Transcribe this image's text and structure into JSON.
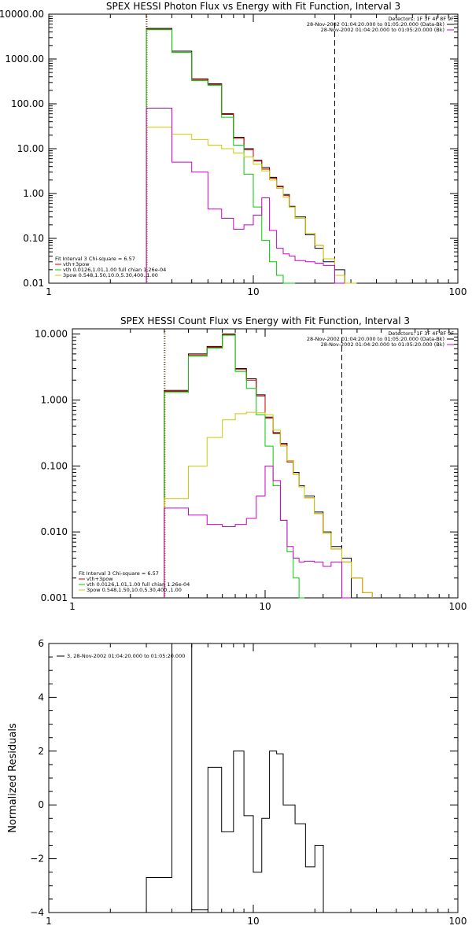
{
  "chart_data": [
    {
      "type": "line",
      "title": "SPEX HESSI Photon Flux vs Energy with Fit Function, Interval 3",
      "xscale": "log",
      "yscale": "log",
      "xlim": [
        1,
        100
      ],
      "ylim": [
        0.01,
        10000
      ],
      "xticks": [
        {
          "v": 1,
          "label": "1"
        },
        {
          "v": 10,
          "label": "10"
        },
        {
          "v": 100,
          "label": "100"
        }
      ],
      "yticks": [
        {
          "v": 0.01,
          "label": "0.01"
        },
        {
          "v": 0.1,
          "label": "0.10"
        },
        {
          "v": 1,
          "label": "1.00"
        },
        {
          "v": 10,
          "label": "10.00"
        },
        {
          "v": 100,
          "label": "100.00"
        },
        {
          "v": 1000,
          "label": "1000.00"
        },
        {
          "v": 10000,
          "label": "10000.00"
        }
      ],
      "legend_top": [
        {
          "text": "Detectors: 1F 3F 4F 8F 9F",
          "color": ""
        },
        {
          "text": "28-Nov-2002 01:04:20.000 to 01:05:20.000 (Data-Bk)",
          "color": "#000000"
        },
        {
          "text": "28-Nov-2002 01:04:20.000 to 01:05:20.000 (Bk)",
          "color": "#cc00cc"
        }
      ],
      "legend_bottom": [
        {
          "text": "Fit Interval 3   Chi-square = 6.57",
          "color": ""
        },
        {
          "text": "vth+3pow",
          "color": "#cc0000"
        },
        {
          "text": "vth 0.0126,1.01,1.00  full chian 1.26e-04",
          "color": "#00cc00"
        },
        {
          "text": "3pow 0.548,1.50,10.0,5.30,400.,1.00",
          "color": "#cccc00"
        }
      ],
      "vlines": [
        {
          "x": 3.0,
          "style": "dotted",
          "color": "#000000"
        },
        {
          "x": 3.0,
          "style": "dotted",
          "color": "#cc6600"
        },
        {
          "x": 25.0,
          "style": "dashed",
          "color": "#000000"
        }
      ],
      "edges": [
        3.0,
        4.0,
        5.0,
        6.0,
        7.0,
        8.0,
        9.0,
        10.0,
        11.0,
        12.0,
        13.0,
        14.0,
        15.0,
        16.0,
        18.0,
        20.0,
        22.0,
        25.0,
        28.0,
        32.0
      ],
      "series": [
        {
          "name": "Data-Bk",
          "color": "#000000",
          "values": [
            4800,
            1500,
            360,
            280,
            60,
            18,
            10,
            5.5,
            3.8,
            2.3,
            1.45,
            0.95,
            0.52,
            0.3,
            0.12,
            0.06,
            0.03,
            0.02,
            null
          ]
        },
        {
          "name": "vth+3pow",
          "color": "#cc0000",
          "values": [
            4600,
            1400,
            350,
            270,
            58,
            17,
            9.5,
            5.3,
            3.5,
            2.2,
            1.4,
            0.9,
            0.5,
            0.28,
            0.13,
            0.07,
            0.035,
            0.015,
            0.01
          ]
        },
        {
          "name": "vth",
          "color": "#00cc00",
          "values": [
            4500,
            1400,
            330,
            260,
            50,
            12,
            2.7,
            0.5,
            0.09,
            0.03,
            0.015,
            0.008,
            0.005,
            null,
            null,
            null,
            null,
            null,
            null
          ]
        },
        {
          "name": "3pow",
          "color": "#cccc00",
          "values": [
            30,
            21,
            16,
            12,
            10,
            8,
            6.5,
            4.5,
            3.2,
            2,
            1.3,
            0.82,
            0.5,
            0.28,
            0.13,
            0.07,
            0.035,
            0.015,
            0.01
          ]
        },
        {
          "name": "Bk",
          "color": "#cc00cc",
          "values": [
            80,
            5,
            3,
            0.45,
            0.28,
            0.16,
            0.2,
            0.33,
            0.8,
            0.15,
            0.06,
            0.045,
            0.04,
            0.032,
            0.03,
            0.028,
            0.025,
            0.005,
            null
          ]
        }
      ]
    },
    {
      "type": "line",
      "title": "SPEX HESSI Count Flux vs Energy with Fit Function, Interval 3",
      "xscale": "log",
      "yscale": "log",
      "xlim": [
        1,
        100
      ],
      "ylim": [
        0.001,
        12
      ],
      "xticks": [
        {
          "v": 1,
          "label": "1"
        },
        {
          "v": 10,
          "label": "10"
        },
        {
          "v": 100,
          "label": "100"
        }
      ],
      "yticks": [
        {
          "v": 0.001,
          "label": "0.001"
        },
        {
          "v": 0.01,
          "label": "0.010"
        },
        {
          "v": 0.1,
          "label": "0.100"
        },
        {
          "v": 1,
          "label": "1.000"
        },
        {
          "v": 10,
          "label": "10.000"
        }
      ],
      "legend_top": [
        {
          "text": "Detectors: 1F 3F 4F 8F 9F",
          "color": ""
        },
        {
          "text": "28-Nov-2002 01:04:20.000 to 01:05:20.000 (Data-Bk)",
          "color": "#000000"
        },
        {
          "text": "28-Nov-2002 01:04:20.000 to 01:05:20.000 (Bk)",
          "color": "#cc00cc"
        }
      ],
      "legend_bottom": [
        {
          "text": "Fit Interval 3   Chi-square = 6.57",
          "color": ""
        },
        {
          "text": "vth+3pow",
          "color": "#cc0000"
        },
        {
          "text": "vth 0.0126,1.01,1.00  full chian 1.26e-04",
          "color": "#00cc00"
        },
        {
          "text": "3pow 0.548,1.50,10.0,5.30,400.,1.00",
          "color": "#cccc00"
        }
      ],
      "vlines": [
        {
          "x": 3.0,
          "style": "dotted",
          "color": "#000000"
        },
        {
          "x": 3.0,
          "style": "dotted",
          "color": "#cc6600"
        },
        {
          "x": 25.0,
          "style": "dashed",
          "color": "#000000"
        }
      ],
      "edges": [
        3.0,
        4.0,
        5.0,
        6.0,
        7.0,
        8.0,
        9.0,
        10.0,
        11.0,
        12.0,
        13.0,
        14.0,
        15.0,
        16.0,
        18.0,
        20.0,
        22.0,
        25.0,
        28.0,
        32.0,
        36.0
      ],
      "series": [
        {
          "name": "Data-Bk",
          "color": "#000000",
          "values": [
            1.4,
            5,
            6.5,
            10,
            3,
            2.1,
            1.2,
            0.55,
            0.32,
            0.22,
            0.12,
            0.08,
            0.05,
            0.035,
            0.02,
            0.01,
            0.006,
            0.004,
            null,
            null
          ]
        },
        {
          "name": "vth+3pow",
          "color": "#cc0000",
          "values": [
            1.35,
            4.8,
            6.3,
            9.8,
            2.9,
            2,
            1.15,
            0.53,
            0.31,
            0.21,
            0.115,
            0.075,
            0.048,
            0.033,
            0.019,
            0.0095,
            0.0055,
            0.0035,
            0.002,
            0.0012
          ]
        },
        {
          "name": "vth",
          "color": "#00cc00",
          "values": [
            1.3,
            4.6,
            6.1,
            9.6,
            2.7,
            1.5,
            0.6,
            0.2,
            0.05,
            0.015,
            0.005,
            0.002,
            0.001,
            null,
            null,
            null,
            null,
            null,
            null,
            null
          ]
        },
        {
          "name": "3pow",
          "color": "#cccc00",
          "values": [
            0.032,
            0.1,
            0.27,
            0.5,
            0.62,
            0.65,
            0.64,
            0.6,
            0.35,
            0.2,
            0.12,
            0.075,
            0.048,
            0.033,
            0.019,
            0.0095,
            0.0055,
            0.0035,
            0.002,
            0.0012
          ]
        },
        {
          "name": "Bk",
          "color": "#cc00cc",
          "values": [
            0.023,
            0.018,
            0.013,
            0.012,
            0.013,
            0.016,
            0.035,
            0.1,
            0.06,
            0.015,
            0.006,
            0.004,
            0.0035,
            0.0036,
            0.0035,
            0.003,
            0.0035,
            0.0009,
            null,
            null
          ]
        }
      ]
    },
    {
      "type": "line",
      "title": "",
      "xscale": "log",
      "yscale": "linear",
      "xlim": [
        1,
        100
      ],
      "ylim": [
        -4,
        6
      ],
      "ylabel": "Normalized Residuals",
      "xticks": [
        {
          "v": 1,
          "label": "1"
        },
        {
          "v": 10,
          "label": "10"
        },
        {
          "v": 100,
          "label": "100"
        }
      ],
      "yticks": [
        {
          "v": -4,
          "label": "−4"
        },
        {
          "v": -2,
          "label": "−2"
        },
        {
          "v": 0,
          "label": "0"
        },
        {
          "v": 2,
          "label": "2"
        },
        {
          "v": 4,
          "label": "4"
        },
        {
          "v": 6,
          "label": "6"
        }
      ],
      "legend_top_left": [
        {
          "text": "3, 28-Nov-2002 01:04:20.000 to 01:05:20.000",
          "color": "#000000"
        }
      ],
      "edges": [
        3.0,
        4.0,
        5.0,
        6.0,
        7.0,
        8.0,
        9.0,
        10.0,
        11.0,
        12.0,
        13.0,
        14.0,
        15.0,
        16.0,
        18.0,
        20.0,
        22.0,
        25.0
      ],
      "series": [
        {
          "name": "3, 28-Nov-2002 01:04:20.000 to 01:05:20.000",
          "color": "#000000",
          "values": [
            -2.7,
            6.1,
            -3.9,
            1.4,
            -1.0,
            2.0,
            -0.4,
            -2.5,
            -0.5,
            2.0,
            1.9,
            0.0,
            0.0,
            -0.7,
            -2.3,
            -1.5,
            null
          ]
        }
      ]
    }
  ]
}
